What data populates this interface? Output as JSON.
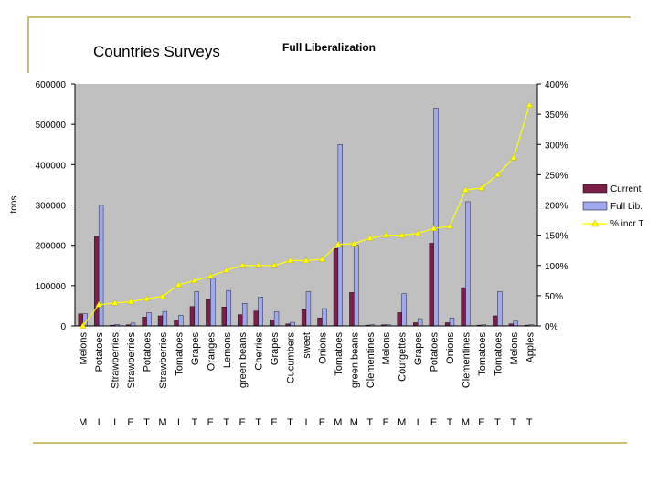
{
  "slide": {
    "title": "Countries Surveys"
  },
  "chart_data": {
    "type": "bar",
    "title": "Full Liberalization",
    "ylabel": "tons",
    "ylim": [
      0,
      600000
    ],
    "y_ticks": [
      "0",
      "100000",
      "200000",
      "300000",
      "400000",
      "500000",
      "600000"
    ],
    "y2lim": [
      0,
      400
    ],
    "y2_ticks": [
      "0%",
      "50%",
      "100%",
      "150%",
      "200%",
      "250%",
      "300%",
      "350%",
      "400%"
    ],
    "categories": [
      "Melons",
      "Potatoes",
      "Strawberries",
      "Strawberries",
      "Potatoes",
      "Strawberries",
      "Tomatoes",
      "Grapes",
      "Oranges",
      "Lemons",
      "green beans",
      "Cherries",
      "Grapes",
      "Cucumbers",
      "sweet",
      "Onions",
      "Tomatoes",
      "green beans",
      "Clementines",
      "Melons",
      "Courgettes",
      "Grapes",
      "Potatoes",
      "Onions",
      "Clementines",
      "Tomatoes",
      "Tomatoes",
      "Melons",
      "Apples"
    ],
    "countries": [
      "M",
      "I",
      "I",
      "E",
      "T",
      "M",
      "I",
      "T",
      "E",
      "T",
      "E",
      "T",
      "E",
      "T",
      "I",
      "E",
      "M",
      "M",
      "T",
      "E",
      "M",
      "I",
      "E",
      "T",
      "M",
      "E",
      "T",
      "T",
      "T"
    ],
    "series": [
      {
        "name": "Current",
        "type": "bar",
        "color": "#7a2048",
        "values": [
          30000,
          222000,
          2000,
          3000,
          22000,
          25000,
          14000,
          48000,
          65000,
          47000,
          28000,
          37000,
          15000,
          5000,
          40000,
          20000,
          192000,
          83000,
          2000,
          3000,
          33000,
          8000,
          205000,
          8000,
          95000,
          2000,
          25000,
          5000,
          2000
        ]
      },
      {
        "name": "Full Lib.",
        "type": "bar",
        "color": "#a0a8f0",
        "values": [
          30000,
          300000,
          4000,
          7000,
          33000,
          36000,
          26000,
          85000,
          118000,
          88000,
          56000,
          72000,
          35000,
          9000,
          85000,
          43000,
          450000,
          200000,
          3000,
          3000,
          80000,
          18000,
          540000,
          20000,
          308000,
          3000,
          85000,
          12000,
          3000
        ]
      },
      {
        "name": "% incr T",
        "type": "line",
        "color": "#ffff00",
        "values": [
          0,
          35,
          38,
          40,
          45,
          49,
          68,
          75,
          82,
          92,
          100,
          100,
          100,
          108,
          108,
          110,
          135,
          136,
          145,
          150,
          150,
          153,
          161,
          165,
          225,
          228,
          250,
          278,
          365
        ]
      }
    ],
    "legend": [
      "Current",
      "Full Lib.",
      "% incr T"
    ],
    "legend_position": "right"
  },
  "style": {
    "current_color": "#7a2048",
    "fulllib_color": "#a0a8f0",
    "line_color": "#ffff00",
    "plot_bg": "#c0c0c0",
    "border_color": "#c8c070"
  }
}
